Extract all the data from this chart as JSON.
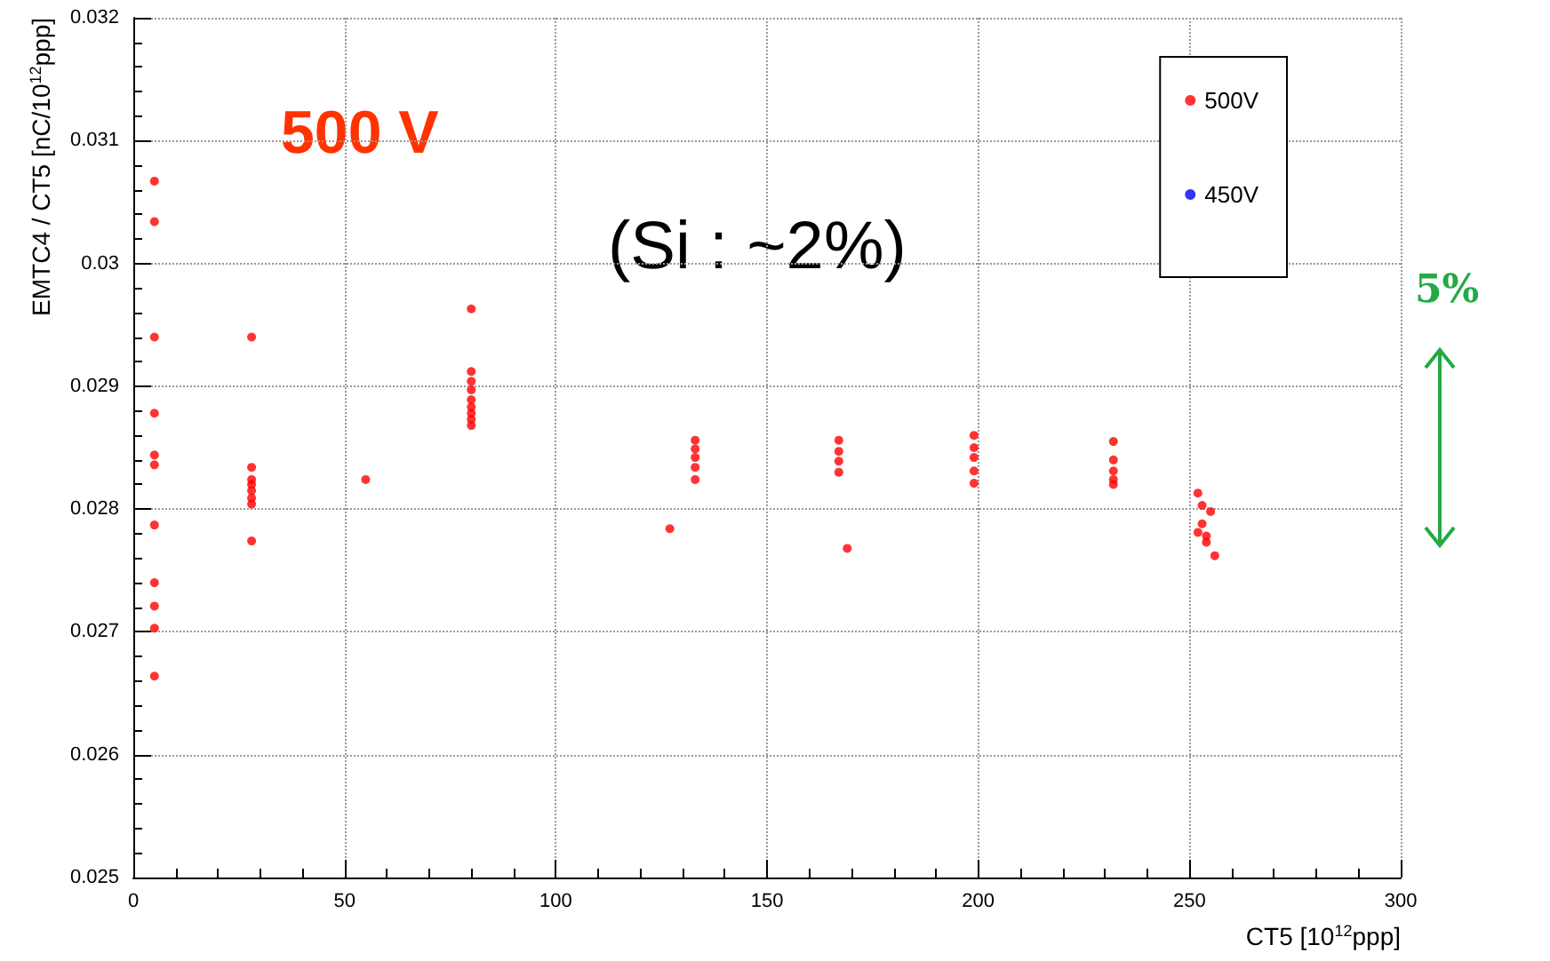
{
  "chart_data": {
    "type": "scatter",
    "xlabel": "CT5 [10$^{12}$ppp]",
    "ylabel": "EMTC4 / CT5 [nC/10$^{12}$ppp]",
    "annotations": [
      "500 V",
      "(Si : ~2%)",
      "5%"
    ],
    "xlim": [
      0,
      300
    ],
    "xticks": [
      0,
      50,
      100,
      150,
      200,
      250,
      300
    ],
    "ylim": [
      0.025,
      0.032
    ],
    "yticks": [
      0.025,
      0.026,
      0.027,
      0.028,
      0.029,
      0.03,
      0.031,
      0.032
    ],
    "grid": true,
    "legend": "top right",
    "marker": "circle",
    "series": [
      {
        "name": "500V",
        "color": "#ff0000",
        "x": [
          5,
          5,
          5,
          5,
          5,
          5,
          5,
          5,
          5,
          5,
          5,
          28,
          28,
          28,
          28,
          28,
          28,
          28,
          28,
          55,
          80,
          80,
          80,
          80,
          80,
          80,
          80,
          80,
          80,
          127,
          133,
          133,
          133,
          133,
          133,
          167,
          167,
          167,
          167,
          169,
          199,
          199,
          199,
          199,
          199,
          232,
          232,
          232,
          232,
          232,
          252,
          253,
          255,
          253,
          252,
          254,
          254,
          256
        ],
        "values": [
          0.03067,
          0.03034,
          0.0294,
          0.02878,
          0.02844,
          0.02836,
          0.02787,
          0.0274,
          0.02721,
          0.02703,
          0.02664,
          0.0294,
          0.02834,
          0.02824,
          0.0282,
          0.02815,
          0.02809,
          0.02804,
          0.02774,
          0.02824,
          0.02963,
          0.02912,
          0.02904,
          0.02897,
          0.02889,
          0.02883,
          0.02878,
          0.02873,
          0.02868,
          0.02784,
          0.02856,
          0.02849,
          0.02842,
          0.02834,
          0.02824,
          0.02856,
          0.02847,
          0.02839,
          0.0283,
          0.02768,
          0.0286,
          0.0285,
          0.02842,
          0.02831,
          0.02821,
          0.02855,
          0.0284,
          0.02831,
          0.02824,
          0.0282,
          0.02813,
          0.02803,
          0.02798,
          0.02788,
          0.02781,
          0.02778,
          0.02773,
          0.02762
        ]
      },
      {
        "name": "450V",
        "color": "#0000ff"
      }
    ]
  }
}
